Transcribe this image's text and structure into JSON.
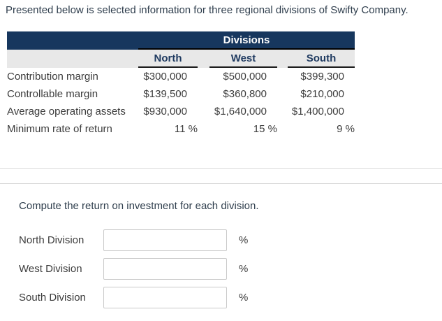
{
  "intro": "Presented below is selected information for three regional divisions of Swifty Company.",
  "table": {
    "group_header": "Divisions",
    "columns": [
      "North",
      "West",
      "South"
    ],
    "rows": [
      {
        "label": "Contribution margin",
        "values": [
          "$300,000",
          "$500,000",
          "$399,300"
        ]
      },
      {
        "label": "Controllable margin",
        "values": [
          "$139,500",
          "$360,800",
          "$210,000"
        ]
      },
      {
        "label": "Average operating assets",
        "values": [
          "$930,000",
          "$1,640,000",
          "$1,400,000"
        ]
      },
      {
        "label": "Minimum rate of return",
        "values": [
          "11 %",
          "15 %",
          "9 %"
        ]
      }
    ]
  },
  "question": "Compute the return on investment for each division.",
  "answers": [
    {
      "label": "North Division",
      "value": "",
      "suffix": "%"
    },
    {
      "label": "West Division",
      "value": "",
      "suffix": "%"
    },
    {
      "label": "South Division",
      "value": "",
      "suffix": "%"
    }
  ],
  "colors": {
    "header_bg": "#17375e",
    "subheader_bg": "#e8e8e8",
    "header_text": "#ffffff",
    "column_header_text": "#1f3a60",
    "body_text": "#3c3c3c",
    "divider": "#d9d9d9",
    "input_border": "#c9c9c9"
  }
}
